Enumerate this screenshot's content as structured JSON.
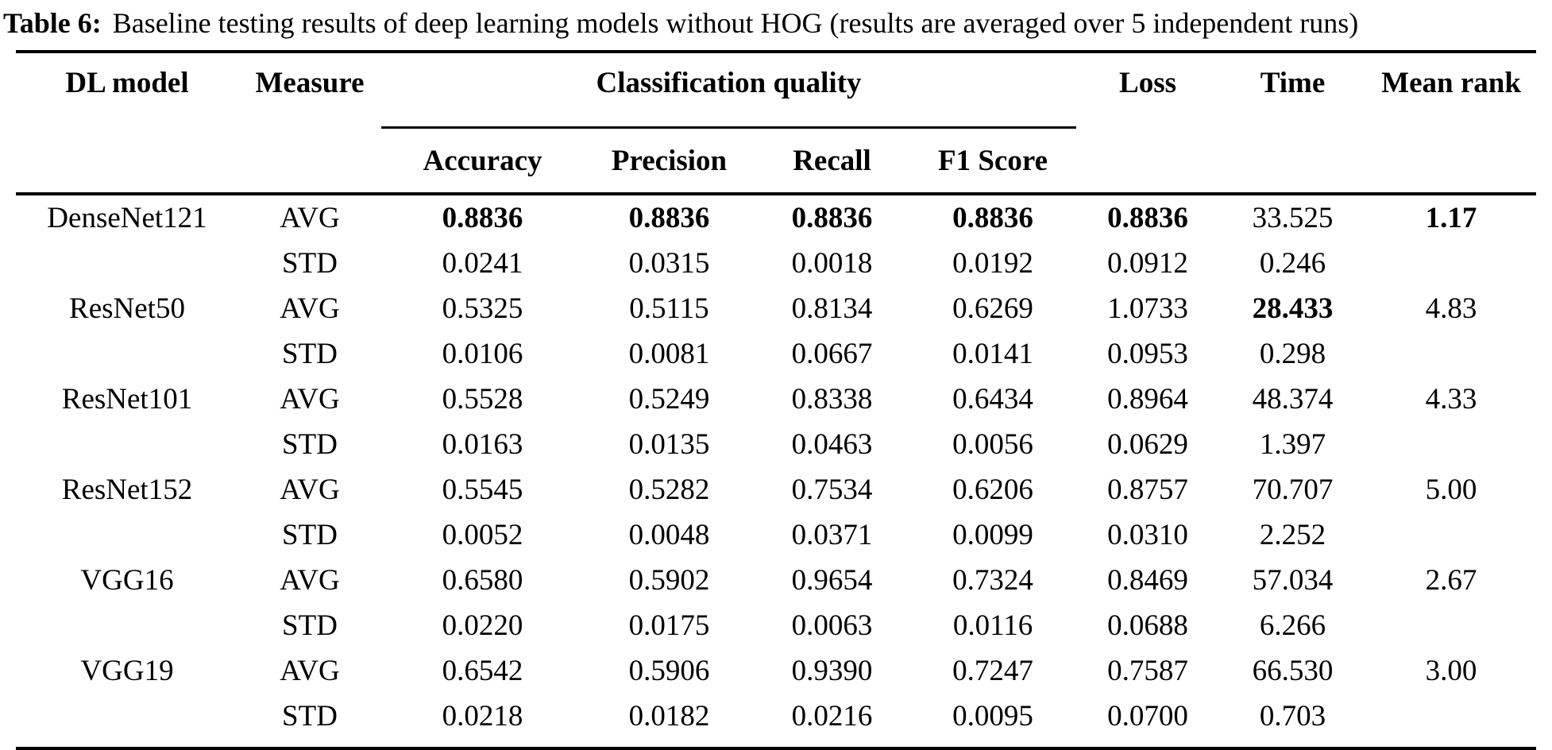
{
  "caption": {
    "label": "Table 6:",
    "text": "Baseline testing results of deep learning models without HOG (results are averaged over 5 independent runs)"
  },
  "table": {
    "headers": {
      "dl_model": "DL model",
      "measure": "Measure",
      "classification_quality": "Classification quality",
      "accuracy": "Accuracy",
      "precision": "Precision",
      "recall": "Recall",
      "f1": "F1 Score",
      "loss": "Loss",
      "time": "Time",
      "mean_rank": "Mean rank"
    },
    "rows": [
      {
        "model": "DenseNet121",
        "avg": {
          "measure": "AVG",
          "accuracy": "0.8836",
          "precision": "0.8836",
          "recall": "0.8836",
          "f1": "0.8836",
          "loss": "0.8836",
          "time": "33.525",
          "rank": "1.17"
        },
        "avg_bold": [
          "accuracy",
          "precision",
          "recall",
          "f1",
          "loss",
          "rank"
        ],
        "std": {
          "measure": "STD",
          "accuracy": "0.0241",
          "precision": "0.0315",
          "recall": "0.0018",
          "f1": "0.0192",
          "loss": "0.0912",
          "time": "0.246",
          "rank": ""
        }
      },
      {
        "model": "ResNet50",
        "avg": {
          "measure": "AVG",
          "accuracy": "0.5325",
          "precision": "0.5115",
          "recall": "0.8134",
          "f1": "0.6269",
          "loss": "1.0733",
          "time": "28.433",
          "rank": "4.83"
        },
        "avg_bold": [
          "time"
        ],
        "std": {
          "measure": "STD",
          "accuracy": "0.0106",
          "precision": "0.0081",
          "recall": "0.0667",
          "f1": "0.0141",
          "loss": "0.0953",
          "time": "0.298",
          "rank": ""
        }
      },
      {
        "model": "ResNet101",
        "avg": {
          "measure": "AVG",
          "accuracy": "0.5528",
          "precision": "0.5249",
          "recall": "0.8338",
          "f1": "0.6434",
          "loss": "0.8964",
          "time": "48.374",
          "rank": "4.33"
        },
        "avg_bold": [],
        "std": {
          "measure": "STD",
          "accuracy": "0.0163",
          "precision": "0.0135",
          "recall": "0.0463",
          "f1": "0.0056",
          "loss": "0.0629",
          "time": "1.397",
          "rank": ""
        }
      },
      {
        "model": "ResNet152",
        "avg": {
          "measure": "AVG",
          "accuracy": "0.5545",
          "precision": "0.5282",
          "recall": "0.7534",
          "f1": "0.6206",
          "loss": "0.8757",
          "time": "70.707",
          "rank": "5.00"
        },
        "avg_bold": [],
        "std": {
          "measure": "STD",
          "accuracy": "0.0052",
          "precision": "0.0048",
          "recall": "0.0371",
          "f1": "0.0099",
          "loss": "0.0310",
          "time": "2.252",
          "rank": ""
        }
      },
      {
        "model": "VGG16",
        "avg": {
          "measure": "AVG",
          "accuracy": "0.6580",
          "precision": "0.5902",
          "recall": "0.9654",
          "f1": "0.7324",
          "loss": "0.8469",
          "time": "57.034",
          "rank": "2.67"
        },
        "avg_bold": [],
        "std": {
          "measure": "STD",
          "accuracy": "0.0220",
          "precision": "0.0175",
          "recall": "0.0063",
          "f1": "0.0116",
          "loss": "0.0688",
          "time": "6.266",
          "rank": ""
        }
      },
      {
        "model": "VGG19",
        "avg": {
          "measure": "AVG",
          "accuracy": "0.6542",
          "precision": "0.5906",
          "recall": "0.9390",
          "f1": "0.7247",
          "loss": "0.7587",
          "time": "66.530",
          "rank": "3.00"
        },
        "avg_bold": [],
        "std": {
          "measure": "STD",
          "accuracy": "0.0218",
          "precision": "0.0182",
          "recall": "0.0216",
          "f1": "0.0095",
          "loss": "0.0700",
          "time": "0.703",
          "rank": ""
        }
      }
    ]
  }
}
